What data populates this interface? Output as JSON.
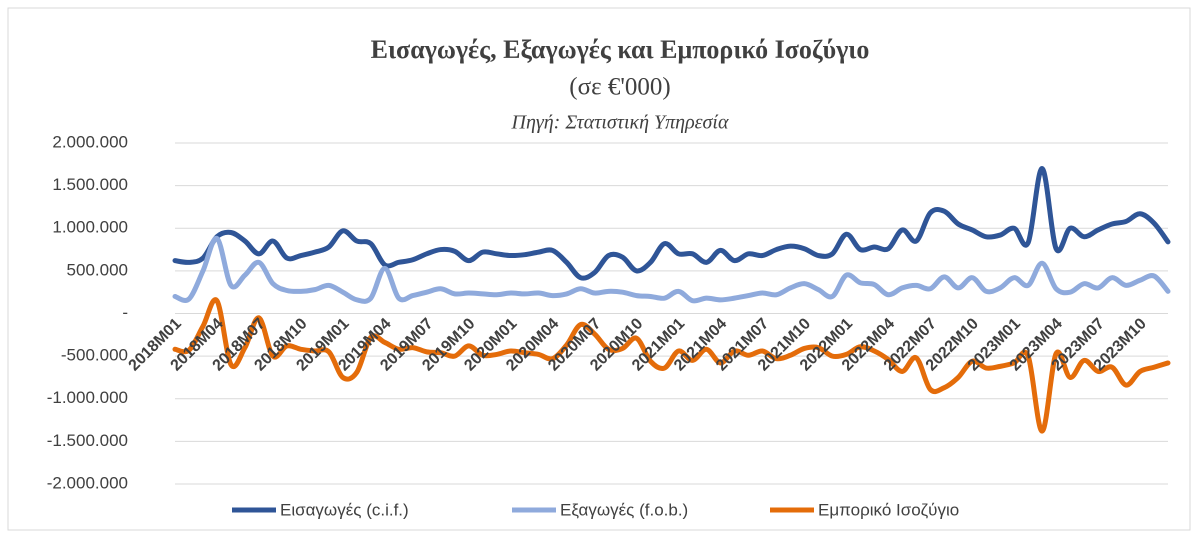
{
  "chart_data": {
    "type": "line",
    "title": "Εισαγωγές, Εξαγωγές και Εμπορικό Ισοζύγιο",
    "subtitle": "(σε €'000)",
    "source": "Πηγή: Στατιστική Υπηρεσία",
    "categories": [
      "2018M01",
      null,
      null,
      "2018M04",
      null,
      null,
      "2018M07",
      null,
      null,
      "2018M10",
      null,
      null,
      "2019M01",
      null,
      null,
      "2019M04",
      null,
      null,
      "2019M07",
      null,
      null,
      "2019M10",
      null,
      null,
      "2020M01",
      null,
      null,
      "2020M04",
      null,
      null,
      "2020M07",
      null,
      null,
      "2020M10",
      null,
      null,
      "2021M01",
      null,
      null,
      "2021M04",
      null,
      null,
      "2021M07",
      null,
      null,
      "2021M10",
      null,
      null,
      "2022M01",
      null,
      null,
      "2022M04",
      null,
      null,
      "2022M07",
      null,
      null,
      "2022M10",
      null,
      null,
      "2023M01",
      null,
      null,
      "2023M04",
      null,
      null,
      "2023M07",
      null,
      null,
      "2023M10",
      null,
      null
    ],
    "series": [
      {
        "name": "Εισαγωγές (c.i.f.)",
        "color": "#2f5597",
        "values": [
          620,
          600,
          650,
          900,
          950,
          850,
          700,
          850,
          650,
          680,
          720,
          780,
          970,
          850,
          820,
          570,
          600,
          630,
          700,
          750,
          730,
          620,
          720,
          700,
          680,
          690,
          720,
          740,
          600,
          420,
          480,
          680,
          660,
          500,
          600,
          820,
          700,
          700,
          600,
          740,
          620,
          700,
          680,
          750,
          790,
          760,
          680,
          700,
          930,
          750,
          780,
          760,
          980,
          850,
          1180,
          1200,
          1050,
          980,
          900,
          920,
          1000,
          830,
          1700,
          760,
          1000,
          900,
          980,
          1050,
          1080,
          1170,
          1060,
          840
        ]
      },
      {
        "name": "Εξαγωγές (f.o.b.)",
        "color": "#8faadc",
        "values": [
          200,
          170,
          500,
          880,
          330,
          450,
          600,
          350,
          270,
          260,
          280,
          330,
          250,
          160,
          180,
          530,
          180,
          210,
          250,
          290,
          230,
          240,
          230,
          220,
          240,
          230,
          240,
          210,
          230,
          290,
          240,
          260,
          250,
          210,
          200,
          180,
          260,
          150,
          180,
          160,
          180,
          210,
          240,
          220,
          300,
          350,
          280,
          200,
          450,
          360,
          340,
          220,
          300,
          330,
          290,
          430,
          300,
          420,
          260,
          300,
          420,
          330,
          590,
          290,
          250,
          350,
          300,
          420,
          330,
          390,
          440,
          260
        ]
      },
      {
        "name": "Εμπορικό Ισοζύγιο",
        "color": "#e46c0a",
        "values": [
          -420,
          -430,
          -150,
          150,
          -600,
          -400,
          -50,
          -500,
          -380,
          -420,
          -440,
          -450,
          -750,
          -690,
          -280,
          -340,
          -420,
          -400,
          -450,
          -460,
          -500,
          -380,
          -490,
          -480,
          -440,
          -460,
          -480,
          -530,
          -370,
          -130,
          -240,
          -420,
          -410,
          -290,
          -560,
          -640,
          -440,
          -550,
          -420,
          -580,
          -440,
          -490,
          -440,
          -530,
          -490,
          -410,
          -400,
          -500,
          -480,
          -390,
          -440,
          -540,
          -680,
          -520,
          -890,
          -870,
          -750,
          -560,
          -640,
          -620,
          -580,
          -500,
          -1380,
          -470,
          -750,
          -550,
          -680,
          -630,
          -840,
          -680,
          -630,
          -580
        ]
      }
    ],
    "ylim": [
      -2000000,
      2000000
    ],
    "yticks": [
      {
        "value": -2000000,
        "label": "-2.000.000"
      },
      {
        "value": -1500000,
        "label": "-1.500.000"
      },
      {
        "value": -1000000,
        "label": "-1.000.000"
      },
      {
        "value": -500000,
        "label": "-500.000"
      },
      {
        "value": 0,
        "label": "-"
      },
      {
        "value": 500000,
        "label": "500.000"
      },
      {
        "value": 1000000,
        "label": "1.000.000"
      },
      {
        "value": 1500000,
        "label": "1.500.000"
      },
      {
        "value": 2000000,
        "label": "2.000.000"
      }
    ],
    "grid": true,
    "legend": "bottom",
    "value_scale": 1000
  }
}
